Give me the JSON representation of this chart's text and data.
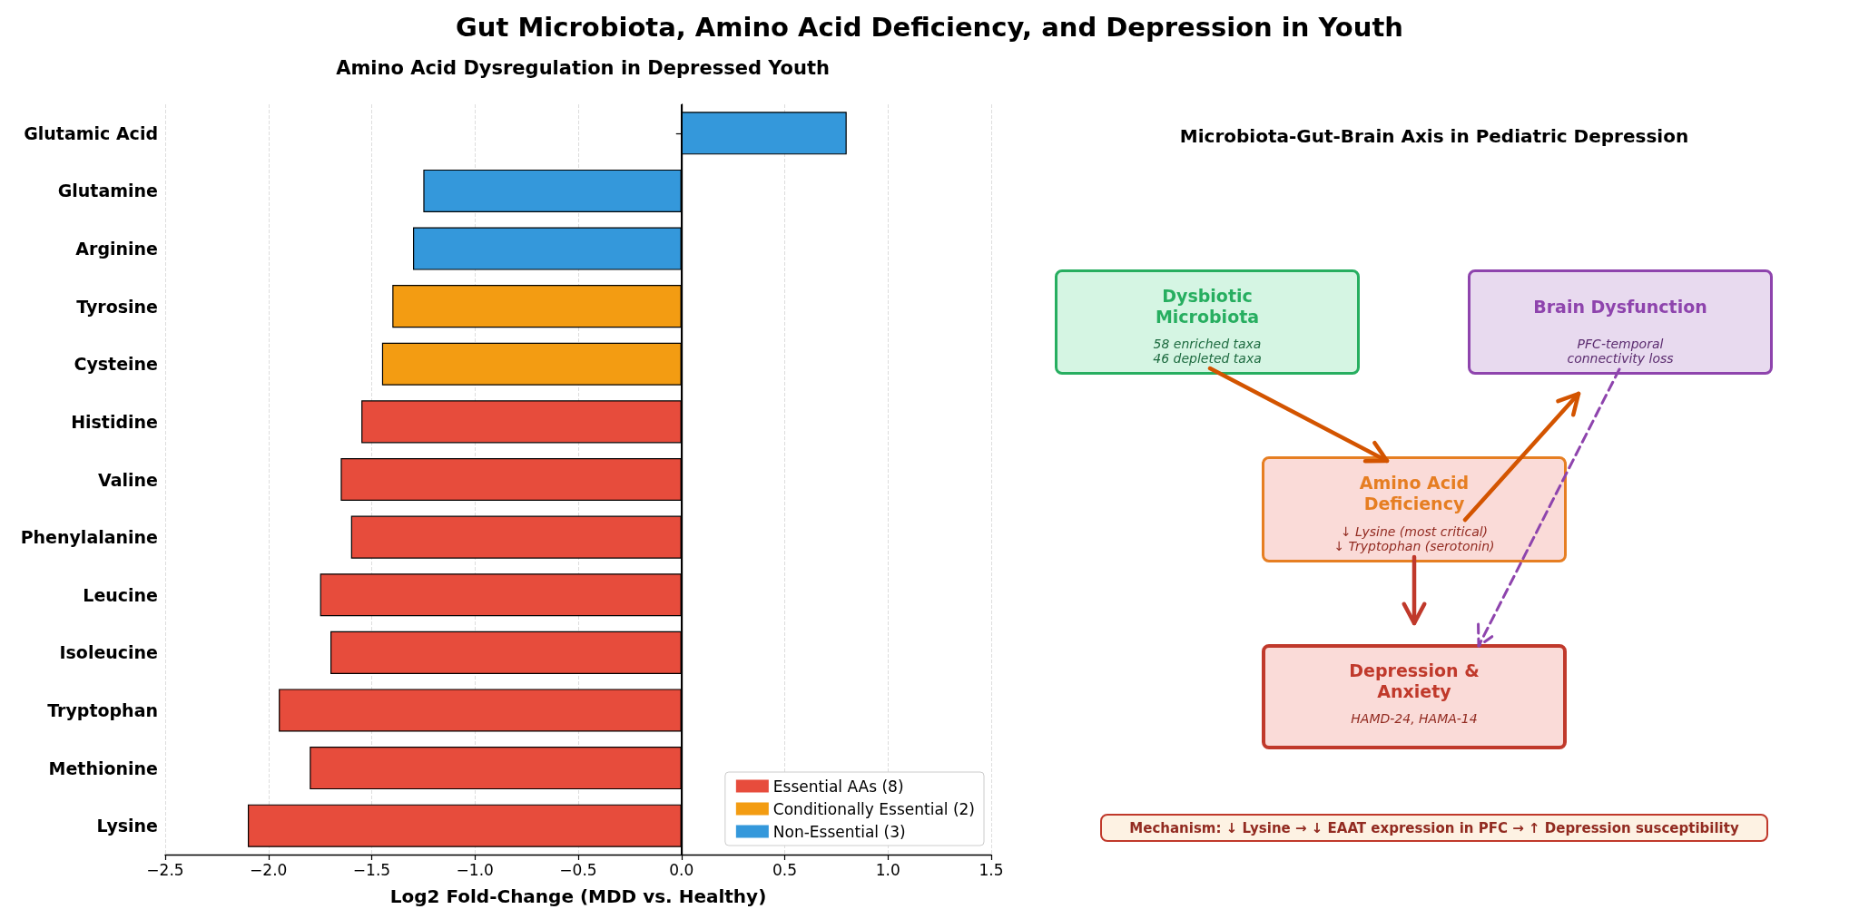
{
  "chart_data": [
    {
      "type": "bar",
      "orientation": "horizontal",
      "title": "Gut Microbiota, Amino Acid Deficiency, and Depression in Youth",
      "subtitle": "Amino Acid Dysregulation in Depressed Youth",
      "xlabel": "Log2 Fold-Change (MDD vs. Healthy)",
      "categories": [
        "Glutamic Acid",
        "Glutamine",
        "Arginine",
        "Tyrosine",
        "Cysteine",
        "Histidine",
        "Valine",
        "Phenylalanine",
        "Leucine",
        "Isoleucine",
        "Tryptophan",
        "Methionine",
        "Lysine"
      ],
      "series": [
        {
          "name": "Essential AAs (8)",
          "color": "#e74c3c",
          "values": [
            null,
            null,
            null,
            null,
            null,
            -1.55,
            -1.65,
            -1.6,
            -1.75,
            -1.7,
            -1.95,
            -1.8,
            -2.1
          ]
        },
        {
          "name": "Conditionally Essential (2)",
          "color": "#f39c12",
          "values": [
            null,
            null,
            null,
            -1.4,
            -1.45,
            null,
            null,
            null,
            null,
            null,
            null,
            null,
            null
          ]
        },
        {
          "name": "Non-Essential (3)",
          "color": "#3498db",
          "values": [
            0.8,
            -1.25,
            -1.3,
            null,
            null,
            null,
            null,
            null,
            null,
            null,
            null,
            null,
            null
          ]
        }
      ],
      "xlim": [
        -2.5,
        1.5
      ],
      "xticks": [
        {
          "value": -2.5,
          "label": "−2.5"
        },
        {
          "value": -2.0,
          "label": "−2.0"
        },
        {
          "value": -1.5,
          "label": "−1.5"
        },
        {
          "value": -1.0,
          "label": "−1.0"
        },
        {
          "value": -0.5,
          "label": "−0.5"
        },
        {
          "value": 0,
          "label": "0.0"
        },
        0.5,
        {
          "value": 1.0,
          "label": "1.0"
        },
        1.5
      ],
      "grid": "x",
      "legend": "bottom right",
      "ref_lines": [
        {
          "axis": "x",
          "value": 0,
          "color": "#000000"
        }
      ]
    },
    {
      "type": "other",
      "title": "Microbiota-Gut-Brain Axis in Pediatric Depression",
      "annotations": [
        "Dysbiotic\nMicrobiota",
        "58 enriched taxa\n46 depleted taxa",
        "Brain Dysfunction",
        "PFC-temporal\nconnectivity loss",
        "Amino Acid\nDeficiency",
        "↓ Lysine (most critical)\n↓ Tryptophan (serotonin)",
        "Depression &\nAnxiety",
        "HAMD-24, HAMA-14",
        "Mechanism: ↓ Lysine → ↓ EAAT expression in PFC → ↑ Depression susceptibility"
      ]
    }
  ]
}
